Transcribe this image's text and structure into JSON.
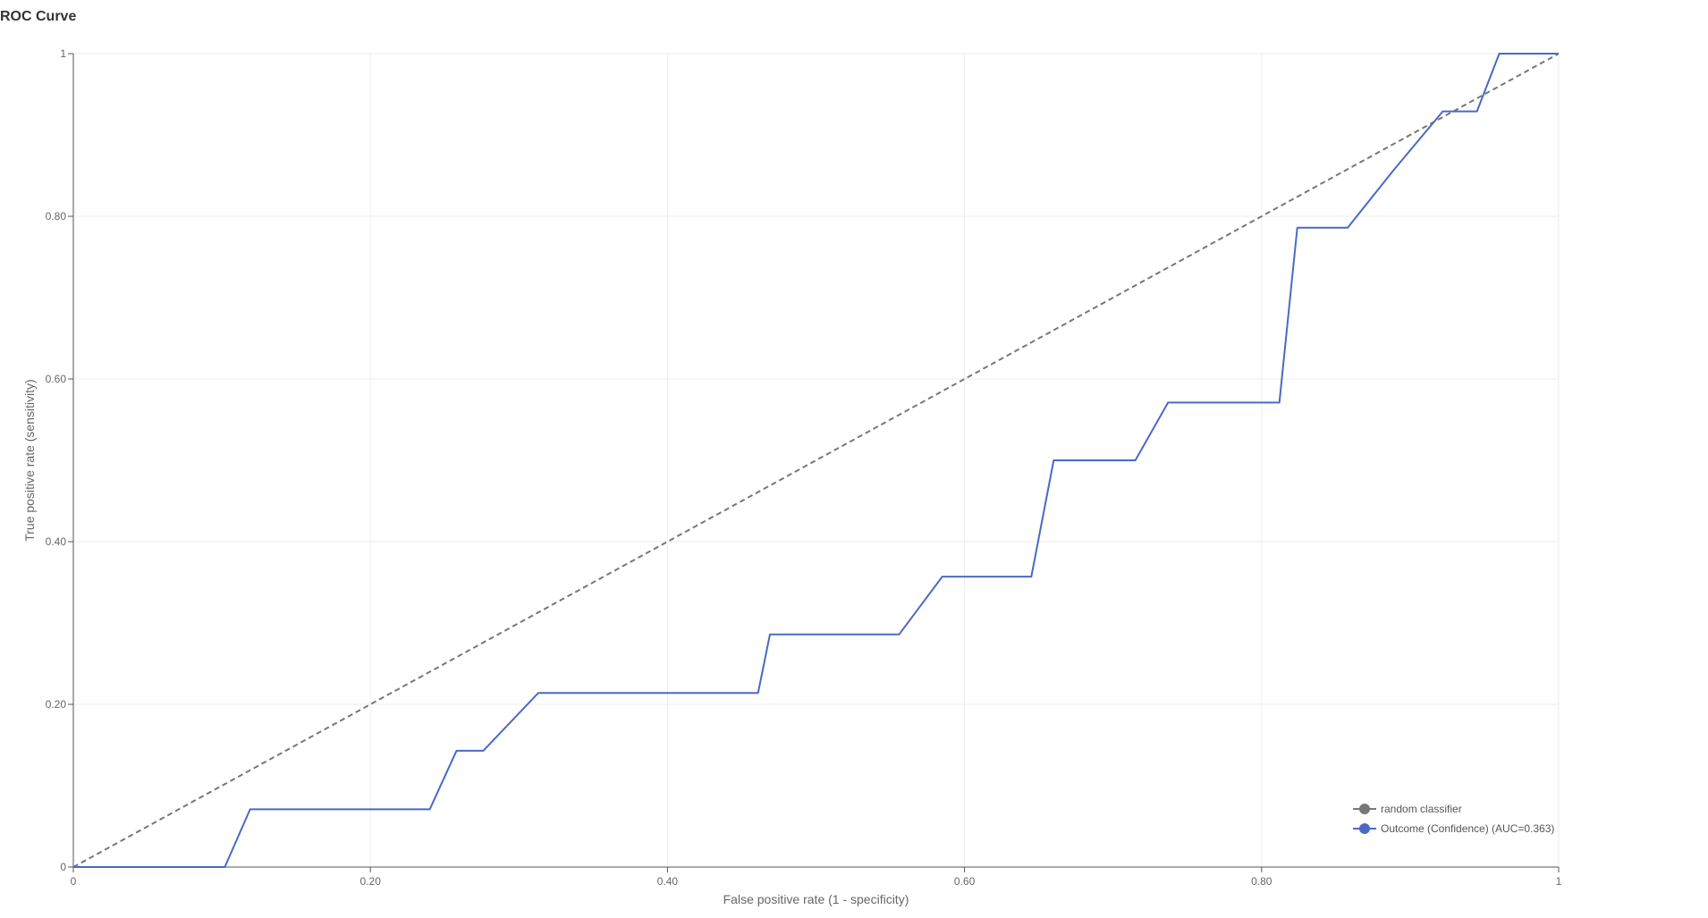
{
  "chart_data": {
    "type": "line",
    "title": "ROC Curve",
    "xlabel": "False positive rate (1 - specificity)",
    "ylabel": "True positive rate (sensitivity)",
    "xlim": [
      0,
      1
    ],
    "ylim": [
      0,
      1
    ],
    "grid": true,
    "legend_position": "bottom-right",
    "x_ticks": [
      {
        "value": 0,
        "label": "0"
      },
      {
        "value": 0.2,
        "label": "0.20"
      },
      {
        "value": 0.4,
        "label": "0.40"
      },
      {
        "value": 0.6,
        "label": "0.60"
      },
      {
        "value": 0.8,
        "label": "0.80"
      },
      {
        "value": 1,
        "label": "1"
      }
    ],
    "y_ticks": [
      {
        "value": 0,
        "label": "0"
      },
      {
        "value": 0.2,
        "label": "0.20"
      },
      {
        "value": 0.4,
        "label": "0.40"
      },
      {
        "value": 0.6,
        "label": "0.60"
      },
      {
        "value": 0.8,
        "label": "0.80"
      },
      {
        "value": 1,
        "label": "1"
      }
    ],
    "series": [
      {
        "name": "random classifier",
        "color": "#777777",
        "dashed": true,
        "points": [
          [
            0,
            0
          ],
          [
            1,
            1
          ]
        ]
      },
      {
        "name": "Outcome (Confidence) (AUC=0.363)",
        "color": "#4a69c6",
        "dashed": false,
        "points": [
          [
            0,
            0
          ],
          [
            0.102,
            0
          ],
          [
            0.119,
            0.071
          ],
          [
            0.24,
            0.071
          ],
          [
            0.258,
            0.143
          ],
          [
            0.276,
            0.143
          ],
          [
            0.313,
            0.214
          ],
          [
            0.461,
            0.214
          ],
          [
            0.469,
            0.286
          ],
          [
            0.556,
            0.286
          ],
          [
            0.585,
            0.357
          ],
          [
            0.645,
            0.357
          ],
          [
            0.66,
            0.5
          ],
          [
            0.715,
            0.5
          ],
          [
            0.737,
            0.571
          ],
          [
            0.812,
            0.571
          ],
          [
            0.824,
            0.786
          ],
          [
            0.858,
            0.786
          ],
          [
            0.889,
            0.857
          ],
          [
            0.922,
            0.929
          ],
          [
            0.945,
            0.929
          ],
          [
            0.96,
            1
          ],
          [
            1,
            1
          ]
        ]
      }
    ]
  }
}
